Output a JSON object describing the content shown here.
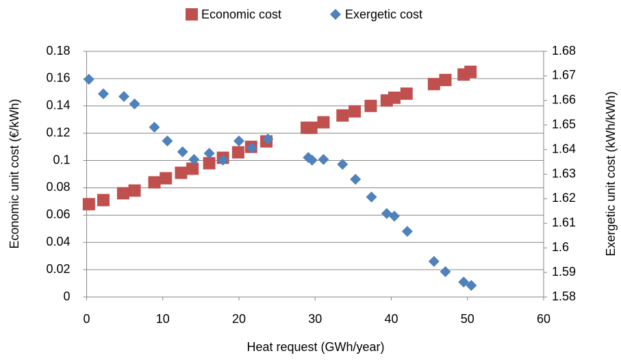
{
  "chart_data": {
    "type": "scatter",
    "x_label": "Heat request (GWh/year)",
    "y_label": "Economic unit cost (€/kWh)",
    "y2_label": "Exergetic unit cost (kWh/kWh)",
    "xlim": [
      0,
      60
    ],
    "xticks": [
      0,
      10,
      20,
      30,
      40,
      50,
      60
    ],
    "ylim": [
      0,
      0.18
    ],
    "yticks": [
      0,
      0.02,
      0.04,
      0.06,
      0.08,
      0.1,
      0.12,
      0.14,
      0.16,
      0.18
    ],
    "y2lim": [
      1.58,
      1.68
    ],
    "y2ticks": [
      1.58,
      1.59,
      1.6,
      1.61,
      1.62,
      1.63,
      1.64,
      1.65,
      1.66,
      1.67,
      1.68
    ],
    "grid": true,
    "legend": "top",
    "series": [
      {
        "name": "Economic cost",
        "color": "#c0504d",
        "marker": "square",
        "x": [
          0.3,
          2.2,
          4.8,
          6.3,
          8.9,
          10.4,
          12.4,
          13.9,
          16.1,
          17.9,
          19.9,
          21.6,
          23.6,
          28.9,
          29.5,
          31.1,
          33.6,
          35.2,
          37.3,
          39.4,
          40.4,
          42.0,
          45.6,
          47.1,
          49.5,
          50.4
        ],
        "values": [
          0.068,
          0.071,
          0.076,
          0.078,
          0.084,
          0.087,
          0.091,
          0.094,
          0.098,
          0.102,
          0.106,
          0.11,
          0.114,
          0.124,
          0.124,
          0.128,
          0.133,
          0.136,
          0.14,
          0.144,
          0.146,
          0.149,
          0.156,
          0.159,
          0.163,
          0.165
        ]
      },
      {
        "name": "Exergetic cost",
        "color": "#4f81bd",
        "marker": "diamond",
        "axis": "y2",
        "x": [
          0.3,
          2.2,
          4.9,
          6.3,
          8.9,
          10.6,
          12.6,
          14.1,
          16.1,
          17.9,
          20.0,
          21.7,
          23.8,
          29.1,
          29.6,
          31.1,
          33.6,
          35.3,
          37.4,
          39.4,
          40.4,
          42.1,
          45.6,
          47.1,
          49.5,
          50.5
        ],
        "values": [
          1.6686,
          1.6627,
          1.6616,
          1.6586,
          1.6491,
          1.6435,
          1.6391,
          1.636,
          1.6385,
          1.6357,
          1.6435,
          1.6407,
          1.6443,
          1.6368,
          1.6357,
          1.636,
          1.634,
          1.6279,
          1.6207,
          1.614,
          1.6129,
          1.6067,
          1.5945,
          1.5903,
          1.5861,
          1.5847
        ]
      }
    ]
  }
}
